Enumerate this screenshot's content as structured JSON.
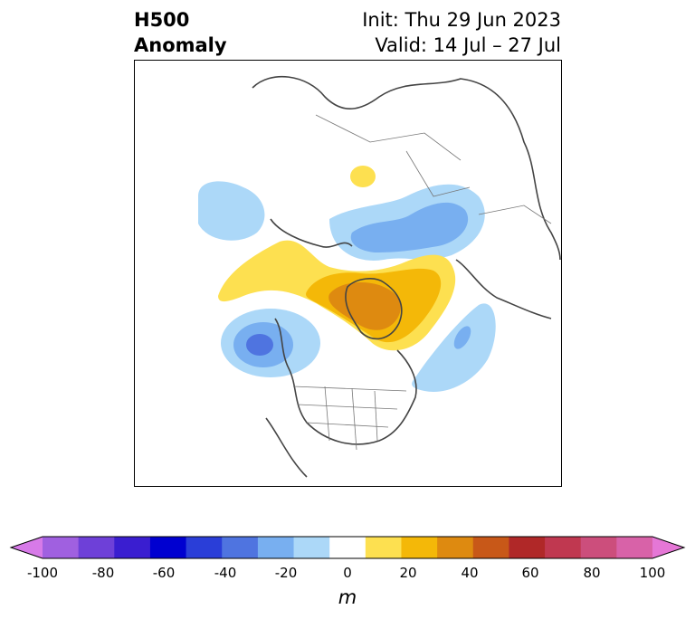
{
  "title": {
    "left_line1": "H500",
    "left_line2": "Anomaly",
    "right_line1": "Init: Thu 29 Jun 2023",
    "right_line2": "Valid: 14 Jul – 27 Jul"
  },
  "colorbar": {
    "units": "m",
    "ticks": [
      "-100",
      "-80",
      "-60",
      "-40",
      "-20",
      "0",
      "20",
      "40",
      "60",
      "80",
      "100"
    ],
    "colors": [
      "#d77ae8",
      "#a060e0",
      "#6e40d8",
      "#3a1ed0",
      "#0000d0",
      "#2a3ed8",
      "#4f74e0",
      "#78aff0",
      "#acd8f8",
      "#ffffff",
      "#fde050",
      "#f4b808",
      "#de8a10",
      "#c85818",
      "#b02828",
      "#c03850",
      "#cc4e7c",
      "#d862a8",
      "#e577d6"
    ]
  },
  "map": {
    "anomalies": [
      {
        "name": "arctic-ridge",
        "sign": "positive",
        "peak": "high"
      },
      {
        "name": "siberia-trough",
        "sign": "negative",
        "peak": "moderate"
      },
      {
        "name": "pacific-trough",
        "sign": "negative",
        "peak": "strong"
      },
      {
        "name": "atlantic-trough",
        "sign": "negative",
        "peak": "moderate"
      },
      {
        "name": "alaska-trough",
        "sign": "negative",
        "peak": "weak"
      }
    ]
  }
}
